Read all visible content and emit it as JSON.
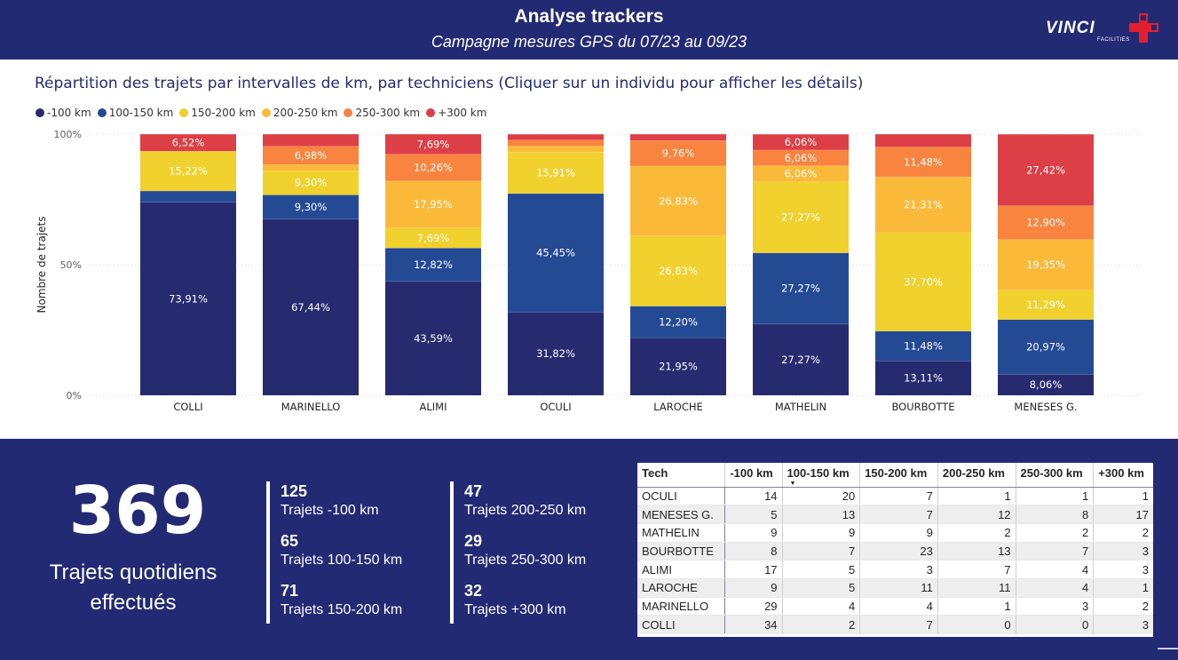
{
  "header": {
    "title": "Analyse trackers",
    "subtitle": "Campagne mesures GPS du 07/23 au 09/23",
    "logo_text": "VINCI",
    "logo_subtext": "FACILITIES"
  },
  "chart_data": {
    "type": "bar",
    "stacked": "100%",
    "title": "Répartition des trajets par intervalles de km, par techniciens (Cliquer sur un individu pour afficher les détails)",
    "ylabel": "Nombre de trajets",
    "xlabel": "",
    "ylim": [
      0,
      100
    ],
    "y_ticks": [
      "0%",
      "50%",
      "100%"
    ],
    "grid": true,
    "legend_position": "top-left",
    "categories": [
      "COLLI",
      "MARINELLO",
      "ALIMI",
      "OCULI",
      "LAROCHE",
      "MATHELIN",
      "BOURBOTTE",
      "MENESES G."
    ],
    "series": [
      {
        "name": "-100 km",
        "color": "#262a6e",
        "values": [
          73.91,
          67.44,
          43.59,
          31.82,
          21.95,
          27.27,
          13.11,
          8.06
        ],
        "labels": [
          "73,91%",
          "67,44%",
          "43,59%",
          "31,82%",
          "21,95%",
          "27,27%",
          "13,11%",
          "8,06%"
        ]
      },
      {
        "name": "100-150 km",
        "color": "#244a94",
        "values": [
          4.35,
          9.3,
          12.82,
          45.45,
          12.2,
          27.27,
          11.48,
          20.97
        ],
        "labels": [
          "",
          "9,30%",
          "12,82%",
          "45,45%",
          "12,20%",
          "27,27%",
          "11,48%",
          "20,97%"
        ]
      },
      {
        "name": "150-200 km",
        "color": "#f0d12d",
        "values": [
          15.22,
          9.3,
          7.69,
          15.91,
          26.83,
          27.27,
          37.7,
          11.29
        ],
        "labels": [
          "15,22%",
          "9,30%",
          "7,69%",
          "15,91%",
          "26,83%",
          "27,27%",
          "37,70%",
          "11,29%"
        ]
      },
      {
        "name": "200-250 km",
        "color": "#fbb93a",
        "values": [
          0,
          2.33,
          17.95,
          2.27,
          26.83,
          6.06,
          21.31,
          19.35
        ],
        "labels": [
          "",
          "",
          "17,95%",
          "",
          "26,83%",
          "6,06%",
          "21,31%",
          "19,35%"
        ]
      },
      {
        "name": "250-300 km",
        "color": "#f9843f",
        "values": [
          0,
          6.98,
          10.26,
          2.27,
          9.76,
          6.06,
          11.48,
          12.9
        ],
        "labels": [
          "",
          "6,98%",
          "10,26%",
          "",
          "9,76%",
          "6,06%",
          "11,48%",
          "12,90%"
        ]
      },
      {
        "name": "+300 km",
        "color": "#dd3f46",
        "values": [
          6.52,
          4.65,
          7.69,
          2.27,
          2.44,
          6.06,
          4.92,
          27.42
        ],
        "labels": [
          "6,52%",
          "",
          "7,69%",
          "",
          "",
          "6,06%",
          "",
          "27,42%"
        ]
      }
    ]
  },
  "summary": {
    "total_value": "369",
    "total_label_line1": "Trajets quotidiens",
    "total_label_line2": "effectués",
    "stats_left": [
      {
        "value": "125",
        "label": "Trajets -100 km"
      },
      {
        "value": "65",
        "label": "Trajets 100-150 km"
      },
      {
        "value": "71",
        "label": "Trajets 150-200 km"
      }
    ],
    "stats_right": [
      {
        "value": "47",
        "label": "Trajets 200-250 km"
      },
      {
        "value": "29",
        "label": "Trajets 250-300 km"
      },
      {
        "value": "32",
        "label": "Trajets +300 km"
      }
    ]
  },
  "table": {
    "headers": [
      "Tech",
      "-100 km",
      "100-150 km",
      "150-200 km",
      "200-250 km",
      "250-300 km",
      "+300 km"
    ],
    "sort_indicator": "▼",
    "rows": [
      {
        "tech": "OCULI",
        "cells": [
          "14",
          "20",
          "7",
          "1",
          "1",
          "1"
        ]
      },
      {
        "tech": "MENESES G.",
        "cells": [
          "5",
          "13",
          "7",
          "12",
          "8",
          "17"
        ]
      },
      {
        "tech": "MATHELIN",
        "cells": [
          "9",
          "9",
          "9",
          "2",
          "2",
          "2"
        ]
      },
      {
        "tech": "BOURBOTTE",
        "cells": [
          "8",
          "7",
          "23",
          "13",
          "7",
          "3"
        ]
      },
      {
        "tech": "ALIMI",
        "cells": [
          "17",
          "5",
          "3",
          "7",
          "4",
          "3"
        ]
      },
      {
        "tech": "LAROCHE",
        "cells": [
          "9",
          "5",
          "11",
          "11",
          "4",
          "1"
        ]
      },
      {
        "tech": "MARINELLO",
        "cells": [
          "29",
          "4",
          "4",
          "1",
          "3",
          "2"
        ]
      },
      {
        "tech": "COLLI",
        "cells": [
          "34",
          "2",
          "7",
          "0",
          "0",
          "3"
        ]
      }
    ]
  },
  "footer": {
    "next_arrow": "🡒"
  }
}
